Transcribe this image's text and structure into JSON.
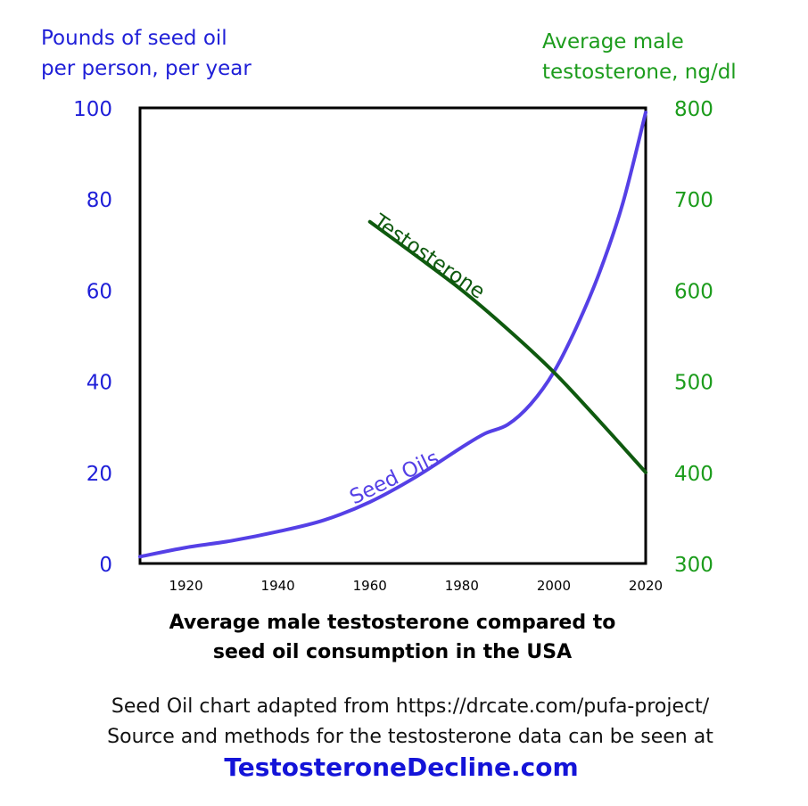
{
  "chart_data": {
    "type": "line",
    "title": "Average male testosterone compared to seed oil consumption in the USA",
    "title_lines": [
      "Average male testosterone compared to",
      "seed oil consumption in the USA"
    ],
    "xlabel": "",
    "x_ticks": [
      1920,
      1940,
      1960,
      1980,
      2000,
      2020
    ],
    "xlim": [
      1910,
      2020
    ],
    "y_left": {
      "label_lines": [
        "Pounds of seed oil",
        "per person, per year"
      ],
      "ylim": [
        0,
        100
      ],
      "ticks": [
        0,
        20,
        40,
        60,
        80,
        100
      ],
      "color": "#1f1fd8"
    },
    "y_right": {
      "label_lines": [
        "Average male",
        "testosterone, ng/dl"
      ],
      "ylim": [
        300,
        800
      ],
      "ticks": [
        300,
        400,
        500,
        600,
        700,
        800
      ],
      "color": "#1c9c1c"
    },
    "series": [
      {
        "name": "Seed Oils",
        "axis": "left",
        "color": "#5540e6",
        "x": [
          1910,
          1920,
          1930,
          1940,
          1950,
          1960,
          1970,
          1980,
          1985,
          1990,
          1995,
          2000,
          2005,
          2010,
          2015,
          2020
        ],
        "values": [
          1.5,
          3.5,
          5,
          7,
          9.5,
          13.5,
          19,
          25.5,
          28.5,
          30.5,
          35,
          42,
          52,
          64,
          79,
          99
        ]
      },
      {
        "name": "Testosterone",
        "axis": "right",
        "color": "#0f5a0f",
        "x": [
          1960,
          1970,
          1980,
          1990,
          2000,
          2010,
          2020
        ],
        "values": [
          675,
          638,
          600,
          557,
          510,
          456,
          400
        ]
      }
    ],
    "grid": false,
    "legend": "inline labels"
  },
  "footer": {
    "source_line1": "Seed Oil chart adapted from https://drcate.com/pufa-project/",
    "source_line2": "Source and methods for the testosterone data can be seen at",
    "site": "TestosteroneDecline.com"
  }
}
